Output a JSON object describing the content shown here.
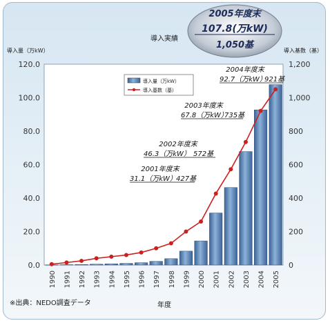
{
  "chart_data": {
    "type": "bar",
    "title": "導入実績",
    "left_axis_label": "導入量（万kW）",
    "right_axis_label": "導入基数（基）",
    "xlabel": "年度",
    "left_ylim": [
      0,
      120
    ],
    "right_ylim": [
      0,
      1200
    ],
    "left_ticks": [
      "120.0",
      "100.0",
      "80.0",
      "60.0",
      "40.0",
      "20.0",
      "0.0"
    ],
    "right_ticks": [
      "1,200",
      "1,000",
      "800",
      "600",
      "400",
      "200",
      "0"
    ],
    "categories": [
      "1990",
      "1991",
      "1992",
      "1993",
      "1994",
      "1995",
      "1996",
      "1997",
      "1998",
      "1999",
      "2000",
      "2001",
      "2002",
      "2003",
      "2004",
      "2005"
    ],
    "series": [
      {
        "name": "導入量（万kW）",
        "type": "bar",
        "axis": "left",
        "values": [
          0.1,
          0.2,
          0.3,
          0.5,
          0.7,
          1.0,
          1.4,
          2.2,
          3.8,
          8.3,
          14.4,
          31.1,
          46.3,
          67.8,
          92.7,
          107.8
        ]
      },
      {
        "name": "導入基数（基）",
        "type": "line",
        "axis": "right",
        "values": [
          5,
          15,
          25,
          40,
          50,
          60,
          75,
          100,
          130,
          200,
          260,
          427,
          572,
          735,
          921,
          1050
        ]
      }
    ],
    "grid": false,
    "legend_position": "top-center",
    "colors": {
      "bar": "#5b86b8",
      "line": "#cc2020"
    },
    "annotations": [
      {
        "year": "2001年度末",
        "value": "31.1（万kW）",
        "units": "427基"
      },
      {
        "year": "2002年度末",
        "value": "46.3（万kW）",
        "units": "572基"
      },
      {
        "year": "2003年度末",
        "value": "67.8（万kW）",
        "units": "735基"
      },
      {
        "year": "2004年度末",
        "value": "92.7（万kW）",
        "units": "921基"
      }
    ],
    "callout": {
      "line1": "2005年度末",
      "line2": "107.8(万kW)",
      "line3": "1,050基"
    }
  },
  "source": "※出典：NEDO調査データ"
}
